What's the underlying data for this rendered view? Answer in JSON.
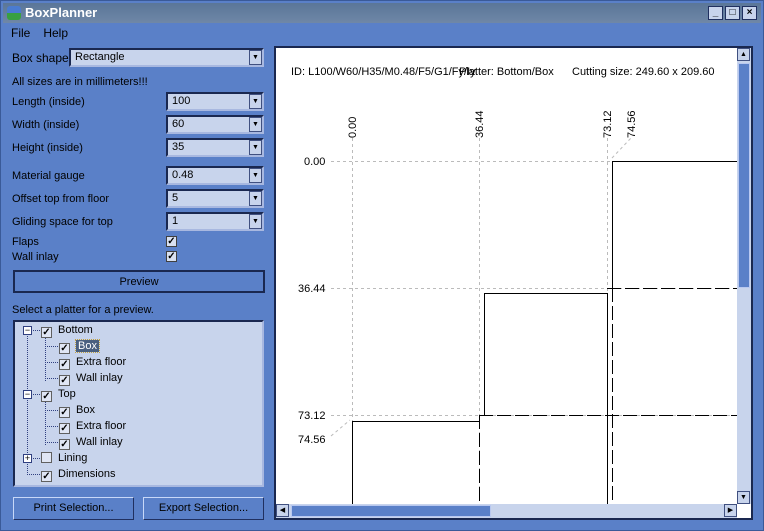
{
  "window": {
    "title": "BoxPlanner",
    "controls": [
      "minimize",
      "maximize",
      "close"
    ]
  },
  "menu": [
    "File",
    "Help"
  ],
  "form": {
    "box_shape_label": "Box shape:",
    "box_shape_value": "Rectangle",
    "units_note": "All sizes are in millimeters!!!",
    "fields": [
      {
        "label": "Length (inside)",
        "value": "100"
      },
      {
        "label": "Width (inside)",
        "value": "60"
      },
      {
        "label": "Height (inside)",
        "value": "35"
      },
      {
        "label": "Material gauge",
        "value": "0.48"
      },
      {
        "label": "Offset top from floor",
        "value": "5"
      },
      {
        "label": "Gliding space for top",
        "value": "1"
      }
    ],
    "checks": [
      {
        "label": "Flaps",
        "checked": true
      },
      {
        "label": "Wall inlay",
        "checked": true
      }
    ],
    "preview_label": "Preview",
    "platter_prompt": "Select a platter for a preview."
  },
  "tree": [
    {
      "label": "Bottom",
      "checked": true,
      "expanded": true,
      "children": [
        {
          "label": "Box",
          "checked": true,
          "selected": true
        },
        {
          "label": "Extra floor",
          "checked": true
        },
        {
          "label": "Wall inlay",
          "checked": true
        }
      ]
    },
    {
      "label": "Top",
      "checked": true,
      "expanded": true,
      "children": [
        {
          "label": "Box",
          "checked": true
        },
        {
          "label": "Extra floor",
          "checked": true
        },
        {
          "label": "Wall inlay",
          "checked": true
        }
      ]
    },
    {
      "label": "Lining",
      "checked": false,
      "expanded": false
    },
    {
      "label": "Dimensions",
      "checked": true
    }
  ],
  "buttons": {
    "print": "Print Selection...",
    "export": "Export Selection..."
  },
  "preview": {
    "id": "ID: L100/W60/H35/M0.48/F5/G1/Fy/Iy",
    "platter": "Platter: Bottom/Box",
    "cutting": "Cutting size: 249.60 x 209.60",
    "x_marks": [
      "0.00",
      "36.44",
      "73.12",
      "74.56"
    ],
    "y_marks": [
      "0.00",
      "36.44",
      "73.12",
      "74.56"
    ]
  }
}
